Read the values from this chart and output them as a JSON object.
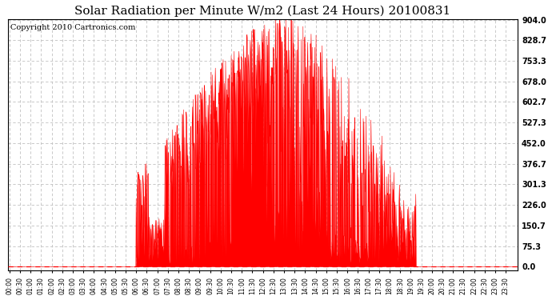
{
  "title": "Solar Radiation per Minute W/m2 (Last 24 Hours) 20100831",
  "copyright": "Copyright 2010 Cartronics.com",
  "yticks": [
    0.0,
    75.3,
    150.7,
    226.0,
    301.3,
    376.7,
    452.0,
    527.3,
    602.7,
    678.0,
    753.3,
    828.7,
    904.0
  ],
  "ymax": 904.0,
  "fill_color": "#ff0000",
  "line_color": "#ff0000",
  "dashed_line_color": "#ff0000",
  "grid_color": "#c0c0c0",
  "bg_color": "#ffffff",
  "plot_bg_color": "#ffffff",
  "title_fontsize": 11,
  "copyright_fontsize": 7,
  "sunrise_minute": 360,
  "sunset_minute": 1155,
  "solar_noon_minute": 775,
  "peak_value": 904.0
}
